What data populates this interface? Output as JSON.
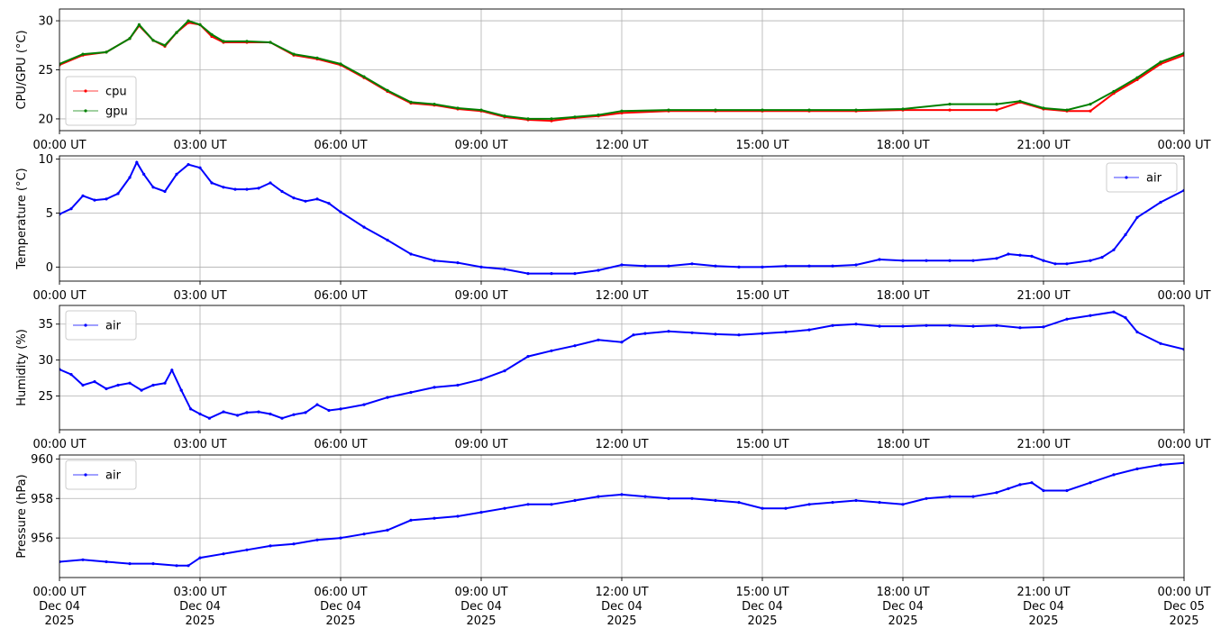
{
  "chart_data": [
    {
      "type": "line",
      "title": "",
      "xlabel": "",
      "ylabel": "CPU/GPU (°C)",
      "xlim": [
        0,
        24
      ],
      "ylim": [
        18.8,
        31.2
      ],
      "yticks": [
        20,
        25,
        30
      ],
      "x_tick_labels": [
        "00:00 UT",
        "03:00 UT",
        "06:00 UT",
        "09:00 UT",
        "12:00 UT",
        "15:00 UT",
        "18:00 UT",
        "21:00 UT",
        "00:00 UT"
      ],
      "grid": true,
      "legend": "lower-left",
      "series": [
        {
          "name": "cpu",
          "color": "#ff0000",
          "x": [
            0,
            0.5,
            1,
            1.5,
            1.7,
            2,
            2.25,
            2.5,
            2.75,
            3,
            3.25,
            3.5,
            4,
            4.5,
            5,
            5.5,
            6,
            6.5,
            7,
            7.5,
            8,
            8.5,
            9,
            9.5,
            10,
            10.5,
            11,
            11.5,
            12,
            13,
            14,
            15,
            16,
            17,
            18,
            19,
            20,
            20.5,
            21,
            21.5,
            22,
            22.5,
            23,
            23.5,
            24
          ],
          "y": [
            25.5,
            26.5,
            26.8,
            28.2,
            29.5,
            28.0,
            27.4,
            28.8,
            29.8,
            29.6,
            28.4,
            27.8,
            27.8,
            27.8,
            26.5,
            26.1,
            25.5,
            24.2,
            22.8,
            21.6,
            21.4,
            21.0,
            20.8,
            20.2,
            19.9,
            19.8,
            20.1,
            20.3,
            20.6,
            20.8,
            20.8,
            20.8,
            20.8,
            20.8,
            20.9,
            20.9,
            20.9,
            21.7,
            21.0,
            20.8,
            20.8,
            22.6,
            24.0,
            25.6,
            26.5
          ]
        },
        {
          "name": "gpu",
          "color": "#008000",
          "x": [
            0,
            0.5,
            1,
            1.5,
            1.7,
            2,
            2.25,
            2.5,
            2.75,
            3,
            3.25,
            3.5,
            4,
            4.5,
            5,
            5.5,
            6,
            6.5,
            7,
            7.5,
            8,
            8.5,
            9,
            9.5,
            10,
            10.5,
            11,
            11.5,
            12,
            13,
            14,
            15,
            16,
            17,
            18,
            19,
            20,
            20.5,
            21,
            21.5,
            22,
            22.5,
            23,
            23.5,
            24
          ],
          "y": [
            25.6,
            26.6,
            26.8,
            28.2,
            29.6,
            28.0,
            27.5,
            28.8,
            30.0,
            29.6,
            28.6,
            27.9,
            27.9,
            27.8,
            26.6,
            26.2,
            25.6,
            24.3,
            22.9,
            21.7,
            21.5,
            21.1,
            20.9,
            20.3,
            20.0,
            20.0,
            20.2,
            20.4,
            20.8,
            20.9,
            20.9,
            20.9,
            20.9,
            20.9,
            21.0,
            21.5,
            21.5,
            21.8,
            21.1,
            20.9,
            21.5,
            22.8,
            24.2,
            25.8,
            26.7
          ]
        }
      ]
    },
    {
      "type": "line",
      "title": "",
      "xlabel": "",
      "ylabel": "Temperature (°C)",
      "xlim": [
        0,
        24
      ],
      "ylim": [
        -1.3,
        10.3
      ],
      "yticks": [
        0,
        5,
        10
      ],
      "x_tick_labels": [
        "00:00 UT",
        "03:00 UT",
        "06:00 UT",
        "09:00 UT",
        "12:00 UT",
        "15:00 UT",
        "18:00 UT",
        "21:00 UT",
        "00:00 UT"
      ],
      "grid": true,
      "legend": "upper-right",
      "series": [
        {
          "name": "air",
          "color": "#0000ff",
          "x": [
            0,
            0.25,
            0.5,
            0.75,
            1,
            1.25,
            1.5,
            1.65,
            1.8,
            2,
            2.25,
            2.5,
            2.75,
            3,
            3.25,
            3.5,
            3.75,
            4,
            4.25,
            4.5,
            4.75,
            5,
            5.25,
            5.5,
            5.75,
            6,
            6.5,
            7,
            7.5,
            8,
            8.5,
            9,
            9.5,
            10,
            10.5,
            11,
            11.5,
            12,
            12.5,
            13,
            13.5,
            14,
            14.5,
            15,
            15.5,
            16,
            16.5,
            17,
            17.5,
            18,
            18.5,
            19,
            19.5,
            20,
            20.25,
            20.5,
            20.75,
            21,
            21.25,
            21.5,
            22,
            22.25,
            22.5,
            22.75,
            23,
            23.5,
            24
          ],
          "y": [
            4.9,
            5.4,
            6.6,
            6.2,
            6.3,
            6.8,
            8.3,
            9.7,
            8.6,
            7.4,
            7.0,
            8.6,
            9.5,
            9.2,
            7.8,
            7.4,
            7.2,
            7.2,
            7.3,
            7.8,
            7.0,
            6.4,
            6.1,
            6.3,
            5.9,
            5.1,
            3.7,
            2.5,
            1.2,
            0.6,
            0.4,
            0.0,
            -0.2,
            -0.6,
            -0.6,
            -0.6,
            -0.3,
            0.2,
            0.1,
            0.1,
            0.3,
            0.1,
            0.0,
            0.0,
            0.1,
            0.1,
            0.1,
            0.2,
            0.7,
            0.6,
            0.6,
            0.6,
            0.6,
            0.8,
            1.2,
            1.1,
            1.0,
            0.6,
            0.3,
            0.3,
            0.6,
            0.9,
            1.6,
            3.0,
            4.6,
            6.0,
            7.1
          ]
        }
      ]
    },
    {
      "type": "line",
      "title": "",
      "xlabel": "",
      "ylabel": "Humidity (%)",
      "xlim": [
        0,
        24
      ],
      "ylim": [
        20.3,
        37.6
      ],
      "yticks": [
        25,
        30,
        35
      ],
      "x_tick_labels": [
        "00:00 UT",
        "03:00 UT",
        "06:00 UT",
        "09:00 UT",
        "12:00 UT",
        "15:00 UT",
        "18:00 UT",
        "21:00 UT",
        "00:00 UT"
      ],
      "grid": true,
      "legend": "upper-left",
      "series": [
        {
          "name": "air",
          "color": "#0000ff",
          "x": [
            0,
            0.25,
            0.5,
            0.75,
            1,
            1.25,
            1.5,
            1.75,
            2,
            2.25,
            2.4,
            2.6,
            2.8,
            3,
            3.2,
            3.5,
            3.8,
            4,
            4.25,
            4.5,
            4.75,
            5,
            5.25,
            5.5,
            5.75,
            6,
            6.5,
            7,
            7.5,
            8,
            8.5,
            9,
            9.5,
            10,
            10.5,
            11,
            11.5,
            12,
            12.25,
            12.5,
            13,
            13.5,
            14,
            14.5,
            15,
            15.5,
            16,
            16.5,
            17,
            17.5,
            18,
            18.5,
            19,
            19.5,
            20,
            20.5,
            21,
            21.5,
            22,
            22.5,
            22.75,
            23,
            23.5,
            24
          ],
          "y": [
            28.7,
            28.0,
            26.5,
            27.0,
            26.0,
            26.5,
            26.8,
            25.8,
            26.5,
            26.8,
            28.6,
            25.8,
            23.2,
            22.5,
            21.9,
            22.8,
            22.3,
            22.7,
            22.8,
            22.5,
            21.9,
            22.4,
            22.7,
            23.8,
            23.0,
            23.2,
            23.8,
            24.8,
            25.5,
            26.2,
            26.5,
            27.3,
            28.5,
            30.5,
            31.3,
            32.0,
            32.8,
            32.5,
            33.5,
            33.7,
            34.0,
            33.8,
            33.6,
            33.5,
            33.7,
            33.9,
            34.2,
            34.8,
            35.0,
            34.7,
            34.7,
            34.8,
            34.8,
            34.7,
            34.8,
            34.5,
            34.6,
            35.7,
            36.2,
            36.7,
            35.9,
            33.9,
            32.3,
            31.5
          ]
        }
      ]
    },
    {
      "type": "line",
      "title": "",
      "xlabel": "",
      "ylabel": "Pressure (hPa)",
      "xlim": [
        0,
        24
      ],
      "ylim": [
        954.0,
        960.2
      ],
      "yticks": [
        956,
        958,
        960
      ],
      "x_tick_labels": [
        "00:00 UT\nDec 04\n2025",
        "03:00 UT\nDec 04\n2025",
        "06:00 UT\nDec 04\n2025",
        "09:00 UT\nDec 04\n2025",
        "12:00 UT\nDec 04\n2025",
        "15:00 UT\nDec 04\n2025",
        "18:00 UT\nDec 04\n2025",
        "21:00 UT\nDec 04\n2025",
        "00:00 UT\nDec 05\n2025"
      ],
      "grid": true,
      "legend": "upper-left",
      "series": [
        {
          "name": "air",
          "color": "#0000ff",
          "x": [
            0,
            0.5,
            1,
            1.5,
            2,
            2.5,
            2.75,
            3,
            3.5,
            4,
            4.5,
            5,
            5.5,
            6,
            6.5,
            7,
            7.5,
            8,
            8.5,
            9,
            9.5,
            10,
            10.5,
            11,
            11.5,
            12,
            12.5,
            13,
            13.5,
            14,
            14.5,
            15,
            15.5,
            16,
            16.5,
            17,
            17.5,
            18,
            18.5,
            19,
            19.5,
            20,
            20.25,
            20.5,
            20.75,
            21,
            21.5,
            22,
            22.5,
            23,
            23.5,
            24
          ],
          "y": [
            954.8,
            954.9,
            954.8,
            954.7,
            954.7,
            954.6,
            954.6,
            955.0,
            955.2,
            955.4,
            955.6,
            955.7,
            955.9,
            956.0,
            956.2,
            956.4,
            956.9,
            957.0,
            957.1,
            957.3,
            957.5,
            957.7,
            957.7,
            957.9,
            958.1,
            958.2,
            958.1,
            958.0,
            958.0,
            957.9,
            957.8,
            957.5,
            957.5,
            957.7,
            957.8,
            957.9,
            957.8,
            957.7,
            958.0,
            958.1,
            958.1,
            958.3,
            958.5,
            958.7,
            958.8,
            958.4,
            958.4,
            958.8,
            959.2,
            959.5,
            959.7,
            959.8
          ]
        }
      ]
    }
  ]
}
